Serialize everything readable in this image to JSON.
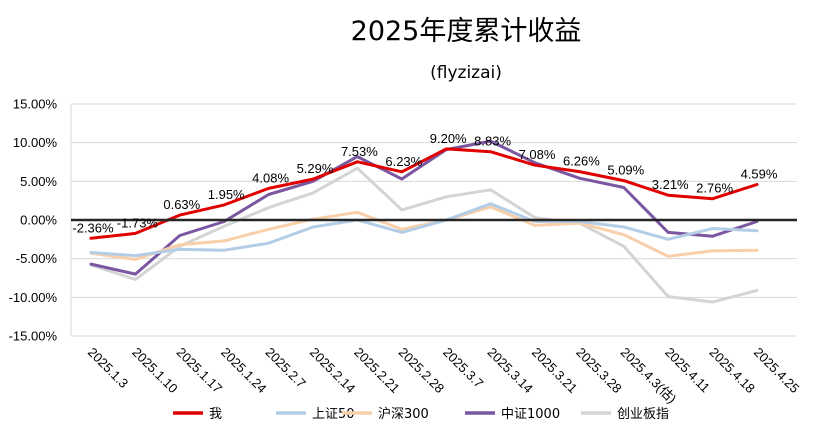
{
  "chart_data": {
    "type": "line",
    "title": "2025年度累计收益",
    "subtitle": "(flyzizai)",
    "xlabel": "",
    "ylabel": "",
    "ylim": [
      -15,
      15
    ],
    "yticks": [
      -15,
      -10,
      -5,
      0,
      5,
      10,
      15
    ],
    "ytick_labels": [
      "-15.00%",
      "-10.00%",
      "-5.00%",
      "0.00%",
      "5.00%",
      "10.00%",
      "15.00%"
    ],
    "grid": true,
    "legend_position": "bottom",
    "categories": [
      "2025.1.3",
      "2025.1.10",
      "2025.1.17",
      "2025.1.24",
      "2025.2.7",
      "2025.2.14",
      "2025.2.21",
      "2025.2.28",
      "2025.3.7",
      "2025.3.14",
      "2025.3.21",
      "2025.3.28",
      "2025.4.3(估)",
      "2025.4.11",
      "2025.4.18",
      "2025.4.25"
    ],
    "series": [
      {
        "name": "我",
        "color": "#e00000",
        "values": [
          -2.36,
          -1.73,
          0.63,
          1.95,
          4.08,
          5.29,
          7.53,
          6.23,
          9.2,
          8.83,
          7.08,
          6.26,
          5.09,
          3.21,
          2.76,
          4.59
        ],
        "labels": [
          "-2.36%",
          "-1.73%",
          "0.63%",
          "1.95%",
          "4.08%",
          "5.29%",
          "7.53%",
          "6.23%",
          "9.20%",
          "8.83%",
          "7.08%",
          "6.26%",
          "5.09%",
          "3.21%",
          "2.76%",
          "4.59%"
        ]
      },
      {
        "name": "上证50",
        "color": "#b4cde6",
        "values": [
          -4.2,
          -4.6,
          -3.8,
          -3.9,
          -3.0,
          -0.9,
          0.0,
          -1.6,
          0.0,
          2.1,
          -0.2,
          -0.2,
          -0.9,
          -2.5,
          -1.1,
          -1.4
        ]
      },
      {
        "name": "沪深300",
        "color": "#f9cfa9",
        "values": [
          -4.3,
          -5.1,
          -3.2,
          -2.7,
          -1.2,
          0.1,
          1.0,
          -1.2,
          0.0,
          1.7,
          -0.7,
          -0.4,
          -1.9,
          -4.7,
          -4.0,
          -3.9
        ]
      },
      {
        "name": "中证1000",
        "color": "#7a57a0",
        "values": [
          -5.7,
          -7.0,
          -2.0,
          -0.2,
          3.3,
          5.0,
          8.2,
          5.3,
          9.1,
          10.2,
          7.4,
          5.4,
          4.2,
          -1.6,
          -2.1,
          -0.2
        ]
      },
      {
        "name": "创业板指",
        "color": "#d4d4d4",
        "values": [
          -5.8,
          -7.7,
          -3.4,
          -0.8,
          1.6,
          3.5,
          6.7,
          1.3,
          3.0,
          3.9,
          0.3,
          -0.4,
          -3.4,
          -9.9,
          -10.6,
          -9.1
        ]
      }
    ]
  }
}
